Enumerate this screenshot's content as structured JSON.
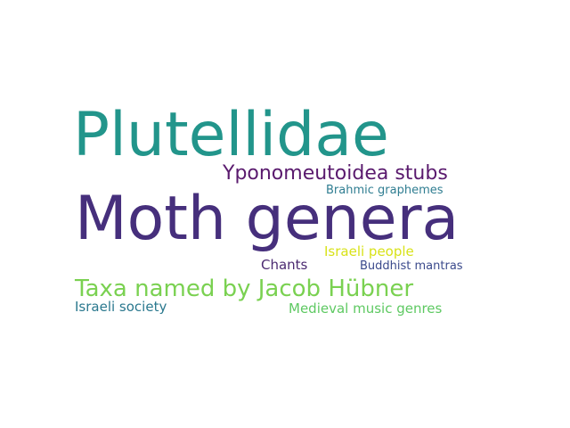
{
  "word_cloud": {
    "words": [
      {
        "text": "Plutellidae",
        "color": "#22958b"
      },
      {
        "text": "Moth genera",
        "color": "#462f7c"
      },
      {
        "text": "Yponomeutoidea stubs",
        "color": "#5a1a6e"
      },
      {
        "text": "Brahmic graphemes",
        "color": "#2f7d91"
      },
      {
        "text": "Israeli people",
        "color": "#d8e219"
      },
      {
        "text": "Chants",
        "color": "#4b2a71"
      },
      {
        "text": "Buddhist mantras",
        "color": "#3b4a8c"
      },
      {
        "text": "Taxa named by Jacob Hübner",
        "color": "#7ad151"
      },
      {
        "text": "Israeli society",
        "color": "#2a788e"
      },
      {
        "text": "Medieval music genres",
        "color": "#5ec962"
      }
    ]
  }
}
